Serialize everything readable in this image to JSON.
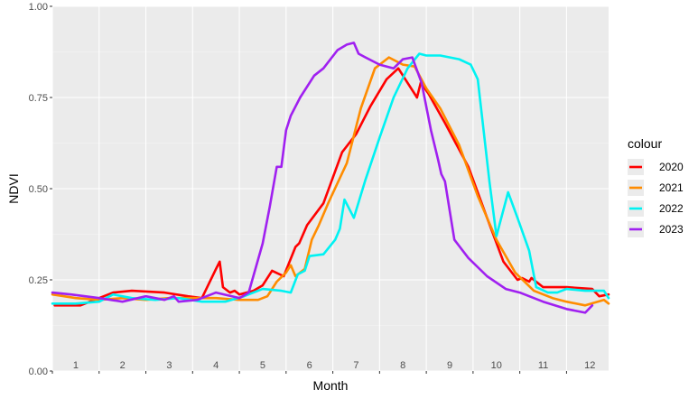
{
  "chart_data": {
    "type": "line",
    "title": "",
    "xlabel": "Month",
    "ylabel": "NDVI",
    "xlim": [
      1,
      12.9
    ],
    "ylim": [
      0,
      1
    ],
    "yticks": [
      "0.00",
      "0.25",
      "0.50",
      "0.75",
      "1.00"
    ],
    "ytick_values": [
      0,
      0.25,
      0.5,
      0.75,
      1
    ],
    "categories": [
      "1",
      "2",
      "3",
      "4",
      "5",
      "6",
      "7",
      "8",
      "9",
      "10",
      "11",
      "12"
    ],
    "grid": true,
    "legend_position": "right",
    "legend_title": "colour",
    "series": [
      {
        "name": "2020",
        "color": "#ff0000",
        "x": [
          1.05,
          1.6,
          2.0,
          2.3,
          2.7,
          3.4,
          3.9,
          4.2,
          4.5,
          4.58,
          4.65,
          4.8,
          4.9,
          5.0,
          5.3,
          5.5,
          5.7,
          5.95,
          6.2,
          6.28,
          6.45,
          6.8,
          7.2,
          7.5,
          7.8,
          8.15,
          8.4,
          8.6,
          8.8,
          8.88,
          9.05,
          9.4,
          9.9,
          10.3,
          10.65,
          10.95,
          11.05,
          11.2,
          11.25,
          11.5,
          12.0,
          12.55,
          12.7,
          12.9
        ],
        "y": [
          0.18,
          0.18,
          0.2,
          0.215,
          0.22,
          0.215,
          0.205,
          0.2,
          0.28,
          0.3,
          0.23,
          0.215,
          0.22,
          0.21,
          0.22,
          0.235,
          0.275,
          0.26,
          0.34,
          0.35,
          0.4,
          0.46,
          0.6,
          0.65,
          0.725,
          0.8,
          0.83,
          0.79,
          0.75,
          0.79,
          0.76,
          0.68,
          0.56,
          0.42,
          0.3,
          0.25,
          0.255,
          0.245,
          0.255,
          0.23,
          0.23,
          0.225,
          0.205,
          0.21
        ]
      },
      {
        "name": "2021",
        "color": "#ff8c00",
        "x": [
          1.0,
          1.5,
          2.0,
          2.5,
          3.0,
          3.5,
          4.0,
          4.5,
          5.0,
          5.4,
          5.6,
          5.8,
          6.0,
          6.1,
          6.2,
          6.4,
          6.55,
          6.7,
          6.9,
          7.3,
          7.6,
          7.9,
          8.2,
          8.5,
          8.75,
          9.0,
          9.3,
          9.7,
          10.1,
          10.5,
          10.9,
          11.3,
          11.7,
          12.0,
          12.4,
          12.8,
          12.9
        ],
        "y": [
          0.21,
          0.2,
          0.195,
          0.2,
          0.195,
          0.2,
          0.2,
          0.2,
          0.195,
          0.195,
          0.205,
          0.245,
          0.27,
          0.29,
          0.26,
          0.28,
          0.36,
          0.4,
          0.46,
          0.57,
          0.72,
          0.83,
          0.86,
          0.84,
          0.835,
          0.775,
          0.72,
          0.62,
          0.48,
          0.36,
          0.27,
          0.22,
          0.2,
          0.19,
          0.18,
          0.195,
          0.185
        ]
      },
      {
        "name": "2022",
        "color": "#00f2f2",
        "x": [
          1.0,
          1.5,
          2.0,
          2.3,
          2.7,
          3.2,
          3.7,
          4.2,
          4.7,
          5.1,
          5.5,
          5.9,
          6.1,
          6.25,
          6.4,
          6.5,
          6.8,
          7.05,
          7.15,
          7.25,
          7.45,
          7.7,
          8.0,
          8.3,
          8.6,
          8.85,
          9.0,
          9.3,
          9.7,
          9.95,
          10.1,
          10.35,
          10.5,
          10.75,
          10.95,
          11.2,
          11.35,
          11.6,
          11.8,
          12.0,
          12.4,
          12.8,
          12.9
        ],
        "y": [
          0.185,
          0.185,
          0.19,
          0.21,
          0.2,
          0.195,
          0.2,
          0.19,
          0.19,
          0.205,
          0.225,
          0.22,
          0.215,
          0.265,
          0.275,
          0.315,
          0.32,
          0.36,
          0.39,
          0.47,
          0.42,
          0.525,
          0.64,
          0.75,
          0.83,
          0.87,
          0.865,
          0.865,
          0.855,
          0.84,
          0.8,
          0.52,
          0.37,
          0.49,
          0.42,
          0.33,
          0.23,
          0.215,
          0.215,
          0.225,
          0.22,
          0.22,
          0.2
        ]
      },
      {
        "name": "2023",
        "color": "#a020f0",
        "x": [
          1.0,
          1.4,
          2.0,
          2.5,
          3.0,
          3.4,
          3.6,
          3.7,
          4.1,
          4.5,
          5.0,
          5.2,
          5.5,
          5.65,
          5.8,
          5.9,
          6.0,
          6.1,
          6.3,
          6.6,
          6.8,
          7.1,
          7.3,
          7.45,
          7.55,
          7.7,
          8.0,
          8.3,
          8.5,
          8.7,
          8.9,
          9.1,
          9.25,
          9.32,
          9.4,
          9.6,
          9.9,
          10.3,
          10.7,
          11.0,
          11.5,
          12.0,
          12.4,
          12.55
        ],
        "y": [
          0.215,
          0.21,
          0.2,
          0.19,
          0.205,
          0.195,
          0.205,
          0.19,
          0.195,
          0.215,
          0.2,
          0.215,
          0.35,
          0.45,
          0.56,
          0.56,
          0.66,
          0.7,
          0.75,
          0.81,
          0.83,
          0.88,
          0.895,
          0.9,
          0.87,
          0.86,
          0.84,
          0.83,
          0.855,
          0.86,
          0.79,
          0.66,
          0.58,
          0.54,
          0.52,
          0.36,
          0.31,
          0.26,
          0.225,
          0.215,
          0.19,
          0.17,
          0.16,
          0.18
        ]
      }
    ]
  }
}
